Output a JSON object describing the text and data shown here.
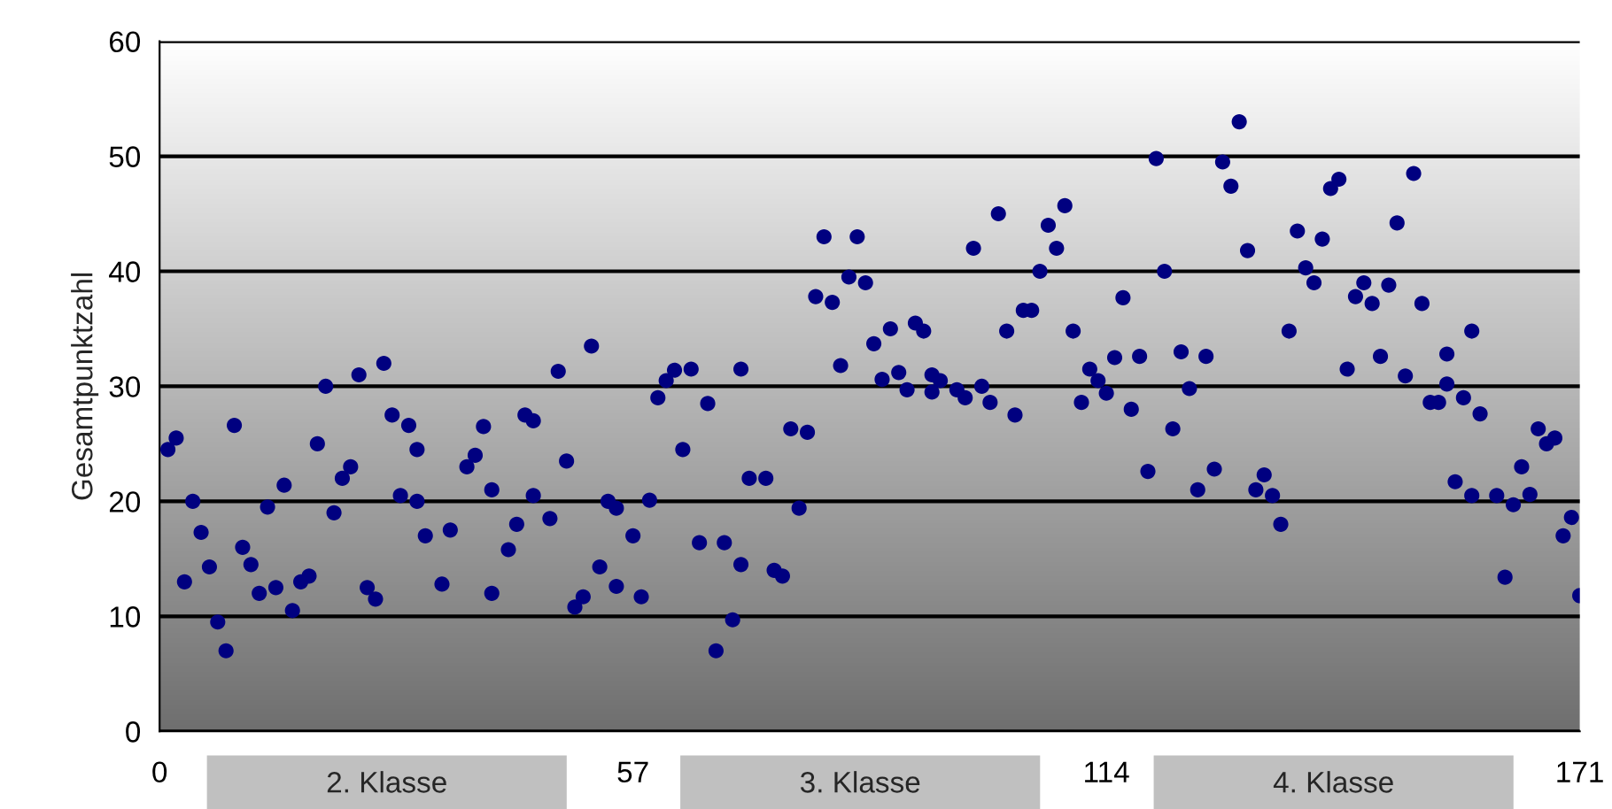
{
  "chart_data": {
    "type": "scatter",
    "ylabel": "Gesamtpunktzahl",
    "xlim": [
      0,
      171
    ],
    "xticks": [
      0,
      57,
      114,
      171
    ],
    "ylim": [
      0,
      60
    ],
    "yticks": [
      0,
      10,
      20,
      30,
      40,
      50,
      60
    ],
    "grid": "y",
    "marker": "circle",
    "legend": false,
    "annotations": [
      "2. Klasse",
      "3. Klasse",
      "4. Klasse"
    ],
    "series": [
      {
        "color": "#000080",
        "x": [
          1,
          2,
          3,
          4,
          5,
          6,
          7,
          8,
          9,
          10,
          11,
          12,
          13,
          14,
          15,
          16,
          17,
          18,
          19,
          20,
          21,
          22,
          23,
          24,
          25,
          26,
          27,
          28,
          29,
          30,
          31,
          31,
          32,
          34,
          35,
          37,
          38,
          39,
          40,
          40,
          42,
          43,
          44,
          45,
          45,
          47,
          48,
          49,
          50,
          51,
          52,
          53,
          54,
          55,
          55,
          57,
          58,
          59,
          60,
          61,
          62,
          63,
          64,
          65,
          66,
          67,
          68,
          69,
          70,
          70,
          71,
          73,
          74,
          75,
          76,
          77,
          78,
          79,
          80,
          81,
          82,
          83,
          84,
          85,
          86,
          87,
          88,
          89,
          90,
          91,
          92,
          93,
          93,
          94,
          96,
          97,
          98,
          99,
          100,
          101,
          102,
          103,
          104,
          105,
          106,
          107,
          108,
          109,
          110,
          111,
          112,
          113,
          114,
          115,
          116,
          117,
          118,
          119,
          120,
          121,
          122,
          123,
          124,
          125,
          126,
          127,
          128,
          129,
          130,
          131,
          132,
          133,
          134,
          135,
          136,
          137,
          138,
          139,
          140,
          141,
          142,
          143,
          144,
          145,
          146,
          147,
          148,
          149,
          150,
          151,
          152,
          153,
          154,
          155,
          155,
          156,
          157,
          158,
          158,
          159,
          161,
          162,
          163,
          164,
          165,
          166,
          167,
          168,
          169,
          170,
          171
        ],
        "values": [
          24.5,
          25.5,
          13,
          20,
          17.3,
          14.3,
          9.5,
          7,
          26.6,
          16,
          14.5,
          12,
          19.5,
          12.5,
          21.4,
          10.5,
          13,
          13.5,
          25,
          30,
          19,
          22,
          23,
          31,
          12.5,
          11.5,
          32,
          27.5,
          20.5,
          26.6,
          24.5,
          20,
          17,
          12.8,
          17.5,
          23,
          24,
          26.5,
          12,
          21,
          15.8,
          18,
          27.5,
          27,
          20.5,
          18.5,
          31.3,
          23.5,
          10.8,
          11.7,
          33.5,
          14.3,
          20,
          12.6,
          19.4,
          17,
          11.7,
          20.1,
          29,
          30.5,
          31.4,
          24.5,
          31.5,
          16.4,
          28.5,
          7,
          16.4,
          9.7,
          14.5,
          31.5,
          22,
          22,
          14,
          13.5,
          26.3,
          19.4,
          26,
          37.8,
          43,
          37.3,
          31.8,
          39.5,
          43,
          39,
          33.7,
          30.6,
          35,
          31.2,
          29.7,
          35.5,
          34.8,
          29.5,
          31,
          30.5,
          29.7,
          29,
          42,
          30,
          28.6,
          45,
          34.8,
          27.5,
          36.6,
          36.6,
          40,
          44,
          42,
          45.7,
          34.8,
          28.6,
          31.5,
          30.5,
          29.4,
          32.5,
          37.7,
          28,
          32.6,
          22.6,
          49.8,
          40,
          26.3,
          33,
          29.8,
          21,
          32.6,
          22.8,
          49.5,
          47.4,
          53,
          41.8,
          21,
          22.3,
          20.5,
          18,
          34.8,
          43.5,
          40.3,
          39,
          42.8,
          47.2,
          48,
          31.5,
          37.8,
          39,
          37.2,
          32.6,
          38.8,
          44.2,
          30.9,
          48.5,
          37.2,
          28.6,
          28.6,
          32.8,
          30.2,
          21.7,
          29,
          34.8,
          20.5,
          27.6,
          20.5,
          13.4,
          19.7,
          23,
          20.6,
          26.3,
          25,
          25.5,
          17,
          18.6,
          11.8
        ]
      }
    ]
  }
}
